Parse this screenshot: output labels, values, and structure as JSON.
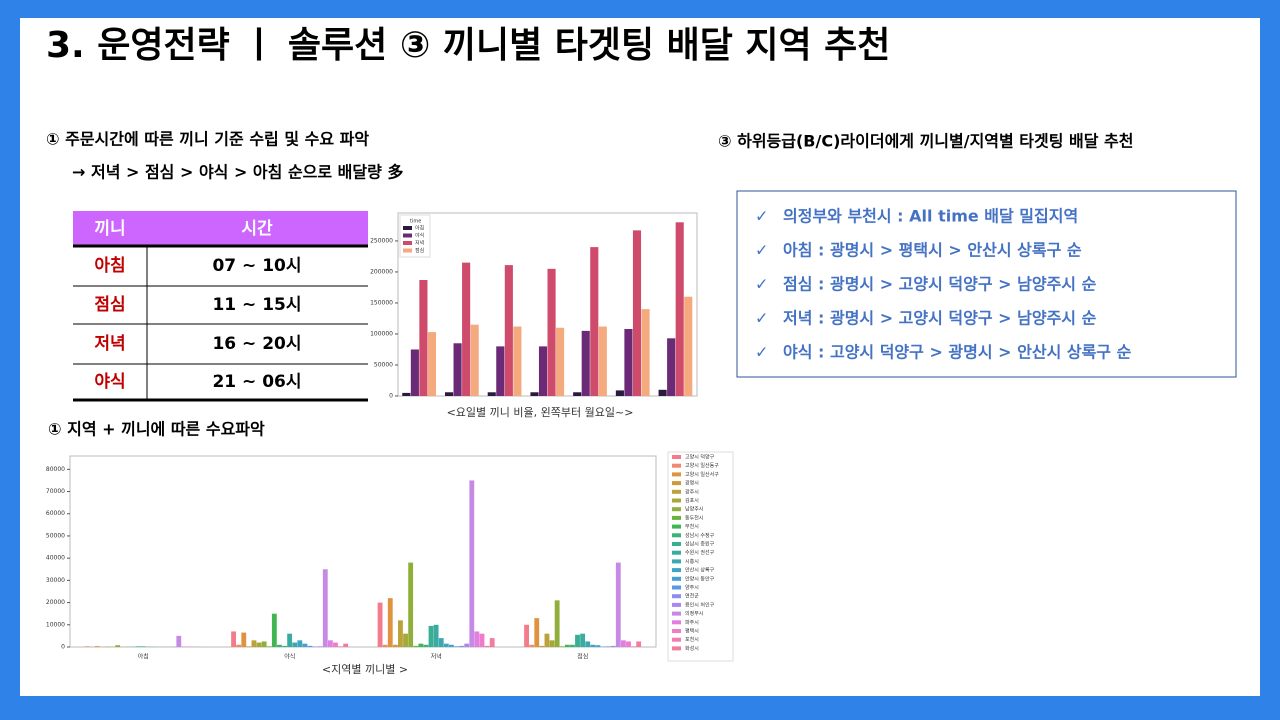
{
  "title": "3. 운영전략  ㅣ  솔루션 ③ 끼니별 타겟팅 배달 지역 추천",
  "section1": {
    "heading": "① 주문시간에 따른 끼니 기준 수립 및 수요 파악",
    "note": "→ 저녁 > 점심 > 야식 > 아침 순으로 배달량 多"
  },
  "table": {
    "header": [
      "끼니",
      "시간"
    ],
    "rows": [
      [
        "아침",
        "07 ~ 10시"
      ],
      [
        "점심",
        "11 ~ 15시"
      ],
      [
        "저녁",
        "16 ~ 20시"
      ],
      [
        "야식",
        "21 ~ 06시"
      ]
    ]
  },
  "section2": {
    "heading": "① 지역 + 끼니에 따른 수요파악"
  },
  "section3": {
    "heading": "③ 하위등급(B/C)라이더에게 끼니별/지역별 타겟팅 배달 추천",
    "items": [
      "의정부와 부천시 :  All time 배달 밀집지역",
      "아침 : 광명시 > 평택시 > 안산시 상록구 순",
      "점심 : 광명시 > 고양시 덕양구 > 남양주시 순",
      "저녁 : 광명시 > 고양시 덕양구 > 남양주시 순",
      "야식 : 고양시 덕양구 > 광명시 > 안산시 상록구 순"
    ]
  },
  "chart_data": [
    {
      "type": "bar",
      "caption": "<요일별 끼니 비율, 왼쪽부터 월요일~>",
      "legend_title": "time",
      "legend": "upper left",
      "categories": [
        null,
        null,
        null,
        null,
        null,
        null,
        null
      ],
      "series": [
        {
          "name": "아침",
          "color": "#2b1a3f",
          "values": [
            5000,
            6000,
            6000,
            6000,
            6000,
            9000,
            10000
          ]
        },
        {
          "name": "야식",
          "color": "#6b2a75",
          "values": [
            75000,
            85000,
            80000,
            80000,
            105000,
            108000,
            93000
          ]
        },
        {
          "name": "저녁",
          "color": "#cf4b6c",
          "values": [
            187000,
            215000,
            211000,
            205000,
            240000,
            267000,
            280000
          ]
        },
        {
          "name": "점심",
          "color": "#f4a97f",
          "values": [
            103000,
            115000,
            112000,
            110000,
            112000,
            140000,
            160000
          ]
        }
      ],
      "ylim": [
        0,
        295000
      ],
      "yticks": [
        0,
        50000,
        100000,
        150000,
        200000,
        250000
      ]
    },
    {
      "type": "bar",
      "caption": "<지역별 끼니별 >",
      "legend": "outside right",
      "categories": [
        "아침",
        "야식",
        "저녁",
        "점심"
      ],
      "series": [
        {
          "name": "고양시 덕양구",
          "color": "#f37b8a",
          "values": [
            300,
            7000,
            20000,
            10000
          ]
        },
        {
          "name": "고양시 일산동구",
          "color": "#ef8a6e",
          "values": [
            100,
            1000,
            1000,
            1000
          ]
        },
        {
          "name": "고양시 일산서구",
          "color": "#e0933f",
          "values": [
            400,
            6500,
            22000,
            13000
          ]
        },
        {
          "name": "광명시",
          "color": "#d09a3a",
          "values": [
            50,
            300,
            1000,
            500
          ]
        },
        {
          "name": "광주시",
          "color": "#bca23a",
          "values": [
            200,
            3000,
            12000,
            6000
          ]
        },
        {
          "name": "김포시",
          "color": "#a8a83a",
          "values": [
            100,
            2000,
            6000,
            3000
          ]
        },
        {
          "name": "남양주시",
          "color": "#8fae3a",
          "values": [
            800,
            2500,
            38000,
            21000
          ]
        },
        {
          "name": "동두천시",
          "color": "#6bb43c",
          "values": [
            50,
            300,
            500,
            300
          ]
        },
        {
          "name": "부천시",
          "color": "#3fb64f",
          "values": [
            100,
            15000,
            1500,
            1000
          ]
        },
        {
          "name": "성남시 수정구",
          "color": "#3bb27a",
          "values": [
            100,
            1000,
            1000,
            1000
          ]
        },
        {
          "name": "성남시 중원구",
          "color": "#3aae92",
          "values": [
            300,
            500,
            9500,
            5500
          ]
        },
        {
          "name": "수원시 권선구",
          "color": "#3aaba3",
          "values": [
            300,
            6000,
            10000,
            6000
          ]
        },
        {
          "name": "시흥시",
          "color": "#3ba8b1",
          "values": [
            100,
            2000,
            4000,
            2500
          ]
        },
        {
          "name": "안산시 상록구",
          "color": "#3da5c0",
          "values": [
            100,
            3000,
            1500,
            1000
          ]
        },
        {
          "name": "안양시 동안구",
          "color": "#42a0d3",
          "values": [
            50,
            1500,
            1000,
            800
          ]
        },
        {
          "name": "양주시",
          "color": "#5a98e6",
          "values": [
            30,
            500,
            300,
            200
          ]
        },
        {
          "name": "연천군",
          "color": "#8a8ef0",
          "values": [
            30,
            200,
            500,
            300
          ]
        },
        {
          "name": "용인시 처인구",
          "color": "#aa86ef",
          "values": [
            100,
            300,
            1500,
            500
          ]
        },
        {
          "name": "의정부시",
          "color": "#c68ae6",
          "values": [
            5000,
            35000,
            75000,
            38000
          ]
        },
        {
          "name": "파주시",
          "color": "#e07fe0",
          "values": [
            200,
            3000,
            7000,
            3000
          ]
        },
        {
          "name": "평택시",
          "color": "#ee7ccb",
          "values": [
            200,
            2000,
            6000,
            2500
          ]
        },
        {
          "name": "포천시",
          "color": "#f27bb5",
          "values": [
            30,
            300,
            500,
            300
          ]
        },
        {
          "name": "화성시",
          "color": "#f37aa0",
          "values": [
            100,
            1500,
            4000,
            2500
          ]
        }
      ],
      "ylim": [
        0,
        86000
      ],
      "yticks": [
        0,
        10000,
        20000,
        30000,
        40000,
        50000,
        60000,
        70000,
        80000
      ]
    }
  ]
}
